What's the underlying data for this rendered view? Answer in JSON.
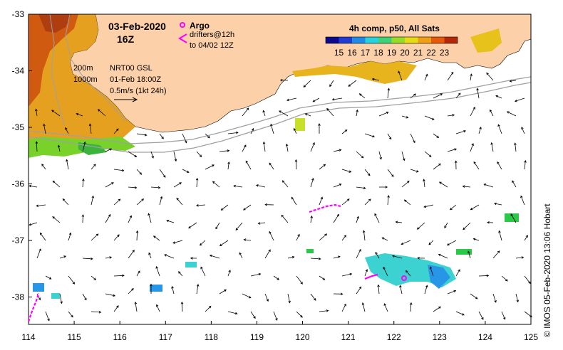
{
  "map": {
    "date_label": "03-Feb-2020",
    "time_label": "16Z",
    "product_label": "4h comp, p50, All Sats",
    "colorbar": {
      "ticks": [
        "15",
        "16",
        "17",
        "18",
        "19",
        "20",
        "21",
        "22",
        "23"
      ],
      "colors": [
        "#0a0a8c",
        "#1e3cd2",
        "#1e8ce6",
        "#28d2dc",
        "#3cd278",
        "#96dc28",
        "#e6dc14",
        "#f0a014",
        "#e65a0a",
        "#b4280a"
      ]
    },
    "contours": [
      "200m",
      "1000m"
    ],
    "gsl_label": "NRT00 GSL",
    "gsl_time": "01-Feb 18:00Z",
    "velocity_scale": "0.5m/s (1kt 24h)",
    "argo_label": "Argo",
    "drifters_label": "drifters@12h",
    "drifters_to": "to 04/02 12Z",
    "credit": "© IMOS 05-Feb-2020 13:06 Hobart",
    "lon_ticks": [
      "114",
      "115",
      "116",
      "117",
      "118",
      "119",
      "120",
      "121",
      "122",
      "123",
      "124",
      "125"
    ],
    "lat_ticks": [
      "-33",
      "-34",
      "-35",
      "-36",
      "-37",
      "-38"
    ],
    "land_color": "#fcd0a8",
    "drifter_color": "#ff00ff"
  }
}
